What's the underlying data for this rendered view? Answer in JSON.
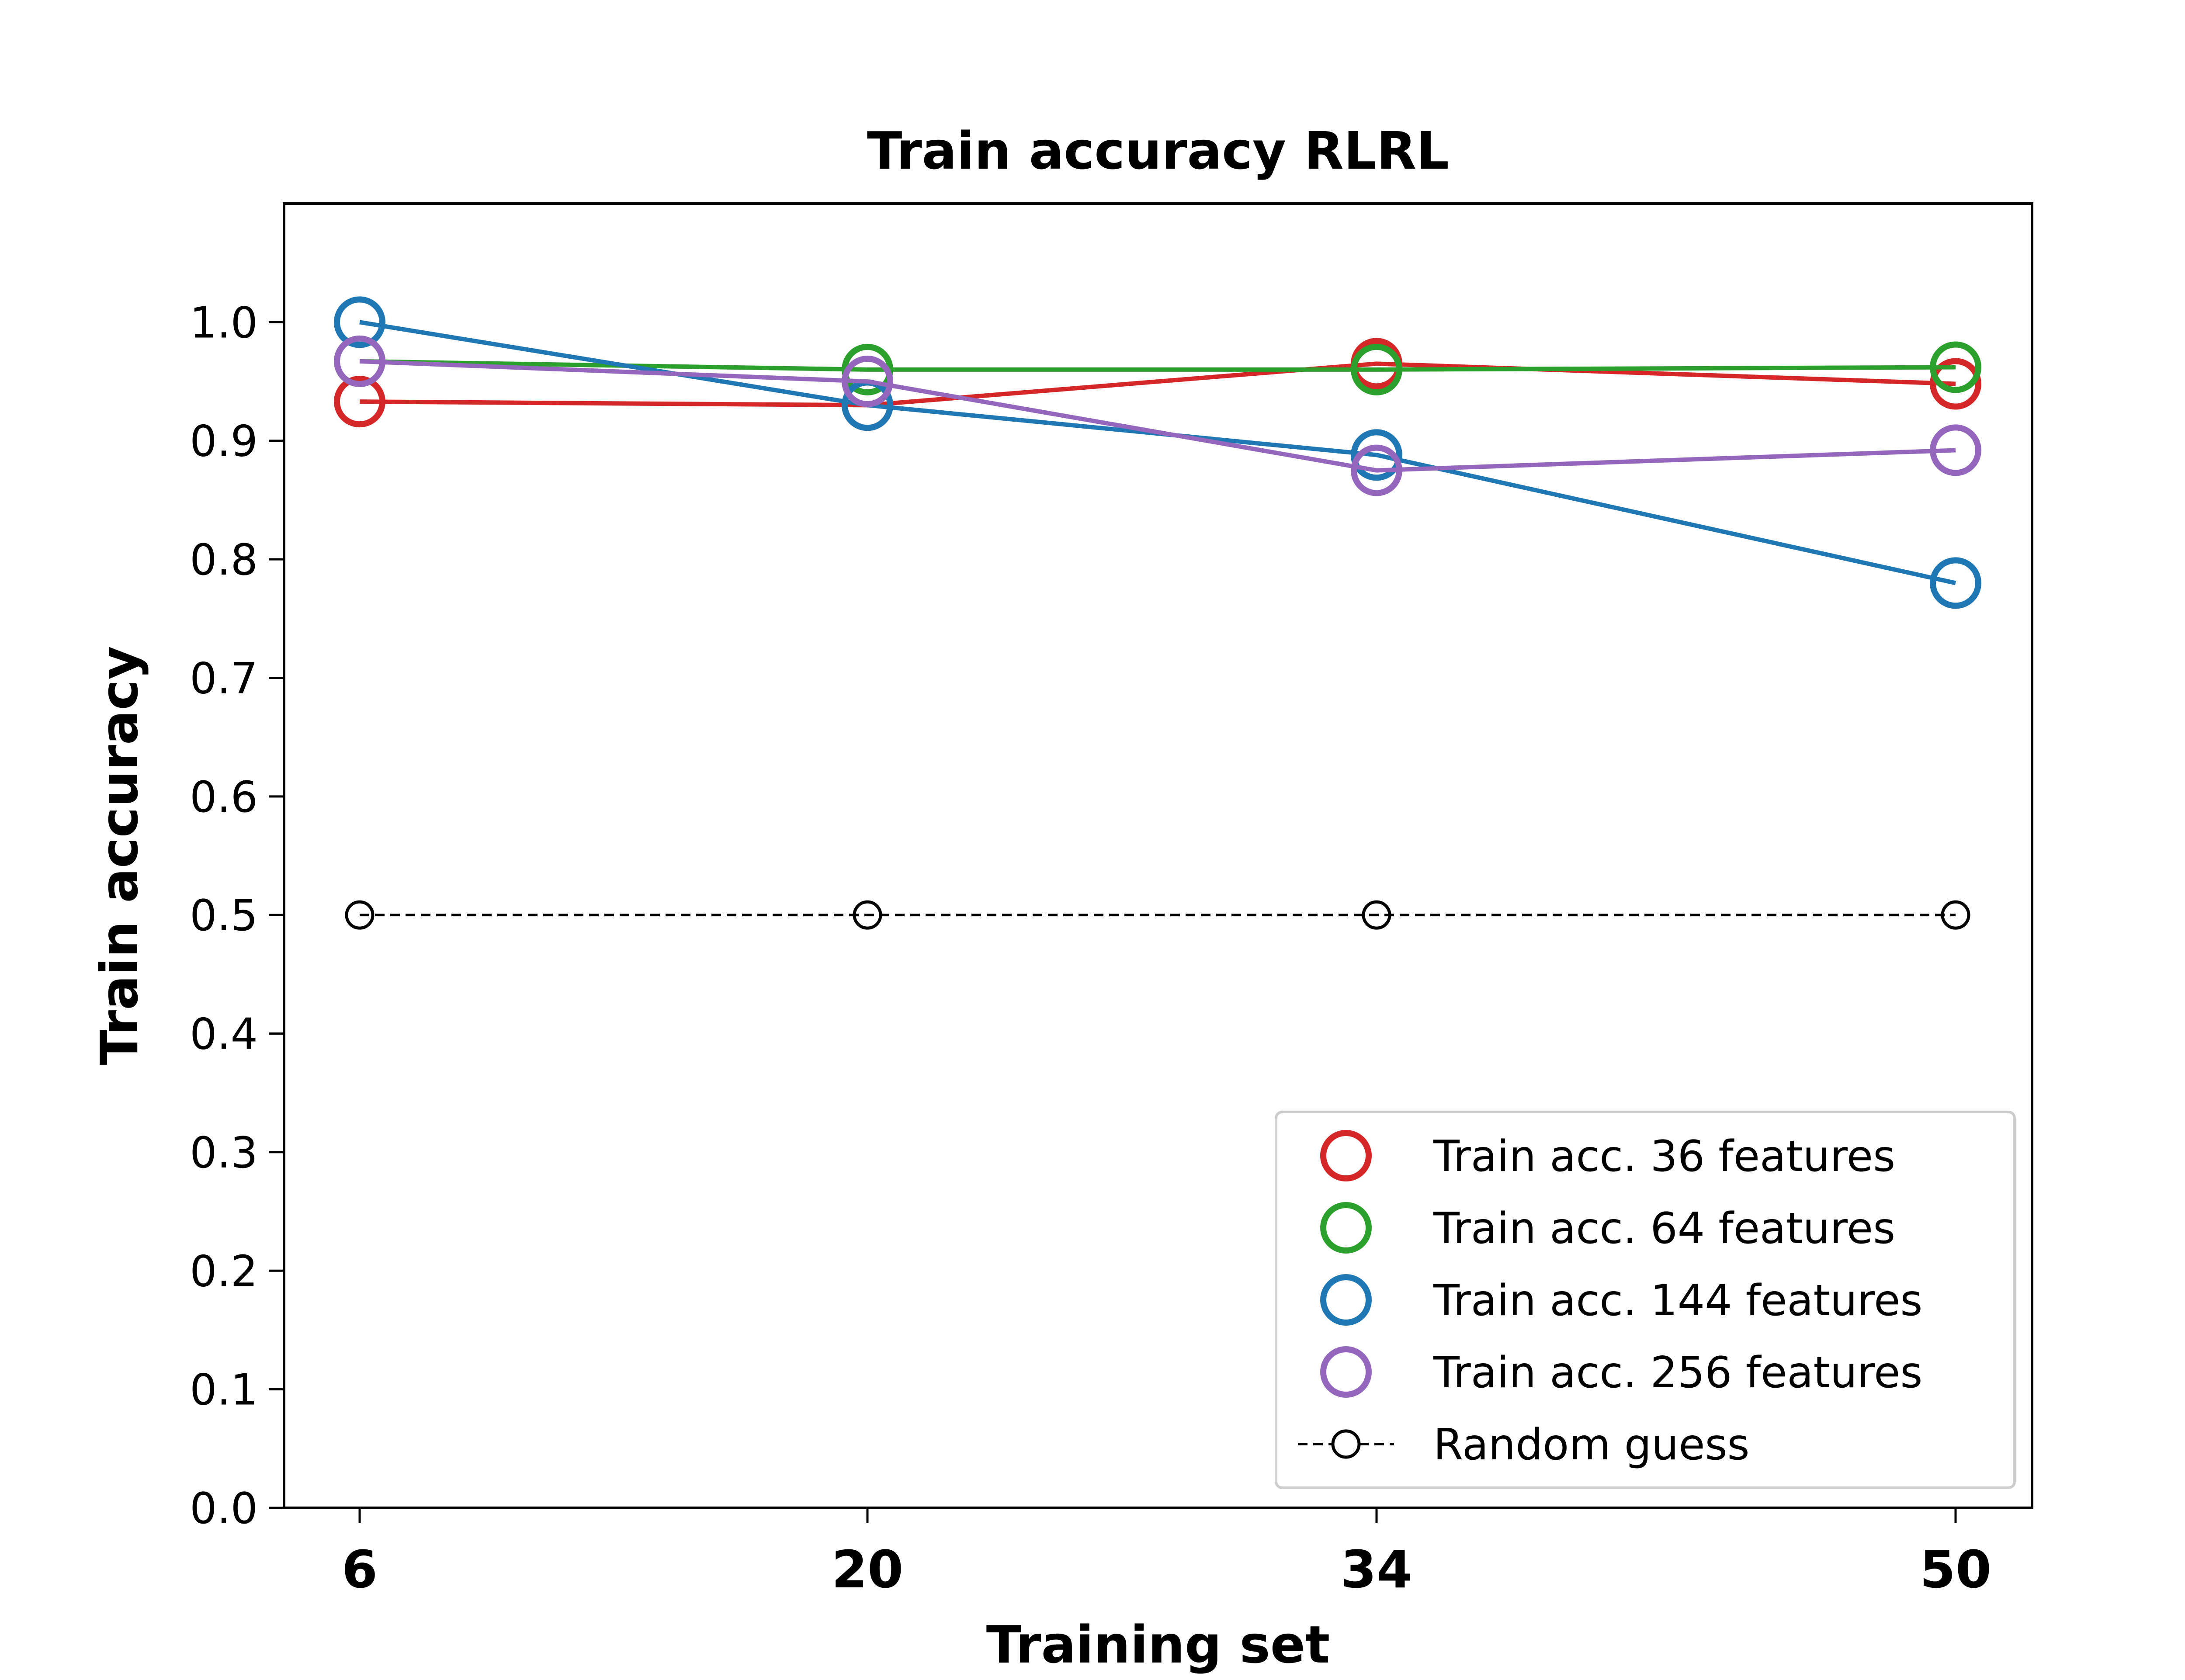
{
  "chart_data": {
    "type": "line",
    "title": "Train accuracy RLRL",
    "xlabel": "Training set",
    "ylabel": "Train accuracy",
    "x": [
      6,
      20,
      34,
      50
    ],
    "x_tick_labels": [
      "6",
      "20",
      "34",
      "50"
    ],
    "ylim": [
      0.0,
      1.1
    ],
    "yticks": [
      0.0,
      0.1,
      0.2,
      0.3,
      0.4,
      0.5,
      0.6,
      0.7,
      0.8,
      0.9,
      1.0
    ],
    "ytick_labels": [
      "0.0",
      "0.1",
      "0.2",
      "0.3",
      "0.4",
      "0.5",
      "0.6",
      "0.7",
      "0.8",
      "0.9",
      "1.0"
    ],
    "grid": false,
    "legend_position": "lower-right",
    "series": [
      {
        "name": "Train acc. 36 features",
        "color": "#d62728",
        "marker": "circle-open",
        "values": [
          0.933,
          0.93,
          0.965,
          0.948
        ]
      },
      {
        "name": "Train acc. 64 features",
        "color": "#2ca02c",
        "marker": "circle-open",
        "values": [
          0.967,
          0.96,
          0.96,
          0.962
        ]
      },
      {
        "name": "Train acc. 144 features",
        "color": "#1f77b4",
        "marker": "circle-open",
        "values": [
          1.0,
          0.93,
          0.888,
          0.78
        ]
      },
      {
        "name": "Train acc. 256 features",
        "color": "#9467bd",
        "marker": "circle-open",
        "values": [
          0.967,
          0.95,
          0.875,
          0.892
        ]
      },
      {
        "name": "Random guess",
        "color": "#000000",
        "marker": "circle-open-small",
        "linestyle": "dashed",
        "values": [
          0.5,
          0.5,
          0.5,
          0.5
        ]
      }
    ]
  }
}
